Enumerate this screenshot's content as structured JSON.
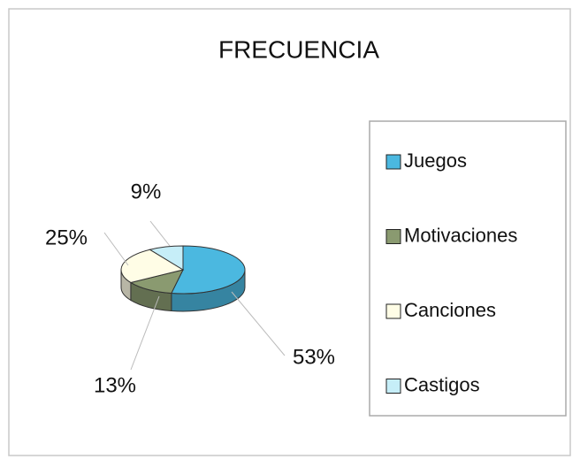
{
  "chart_data": {
    "type": "pie3d",
    "title": "FRECUENCIA",
    "categories": [
      "Juegos",
      "Motivaciones",
      "Canciones",
      "Castigos"
    ],
    "values": [
      53,
      13,
      25,
      9
    ],
    "value_labels": [
      "53%",
      "13%",
      "25%",
      "9%"
    ],
    "colors": [
      "#4bb8e0",
      "#8a9a70",
      "#fffde6",
      "#c6eef8"
    ],
    "legend": "right"
  }
}
